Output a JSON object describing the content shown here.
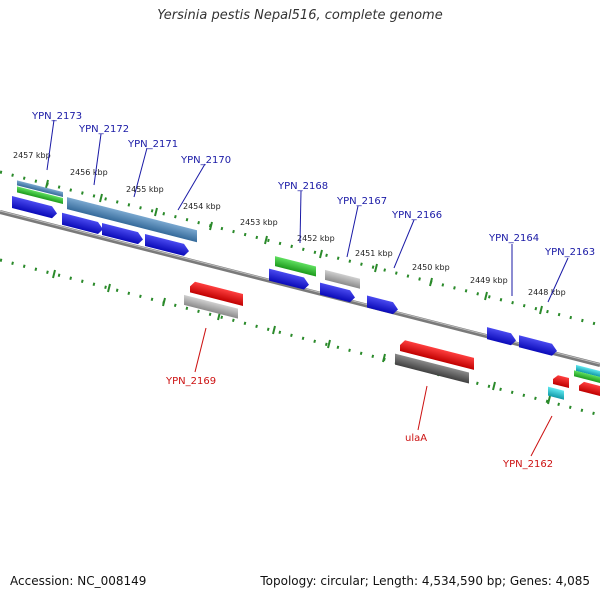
{
  "title": "Yersinia pestis Nepal516, complete genome",
  "footer": {
    "accession": "Accession: NC_008149",
    "topology": "Topology: circular; Length: 4,534,590 bp; Genes: 4,085"
  },
  "kbp_labels": [
    "2457 kbp",
    "2456 kbp",
    "2455 kbp",
    "2454 kbp",
    "2453 kbp",
    "2452 kbp",
    "2451 kbp",
    "2450 kbp",
    "2449 kbp",
    "2448 kbp"
  ],
  "genes_forward": [
    "YPN_2173",
    "YPN_2172",
    "YPN_2171",
    "YPN_2170",
    "YPN_2168",
    "YPN_2167",
    "YPN_2166",
    "YPN_2164",
    "YPN_2163"
  ],
  "genes_reverse": [
    "YPN_2169",
    "ulaA",
    "YPN_2162"
  ],
  "colors": {
    "forward_label": "#1a1aa6",
    "reverse_label": "#cc1111",
    "cds_blue": "#1515d8",
    "rna_green": "#2db82d",
    "steel_blue": "#4a7fb0",
    "red": "#e01010",
    "gray": "#a0a0a0",
    "dark_gray": "#555555",
    "cyan": "#20c0d0",
    "tick_green": "#2a8a2a"
  }
}
